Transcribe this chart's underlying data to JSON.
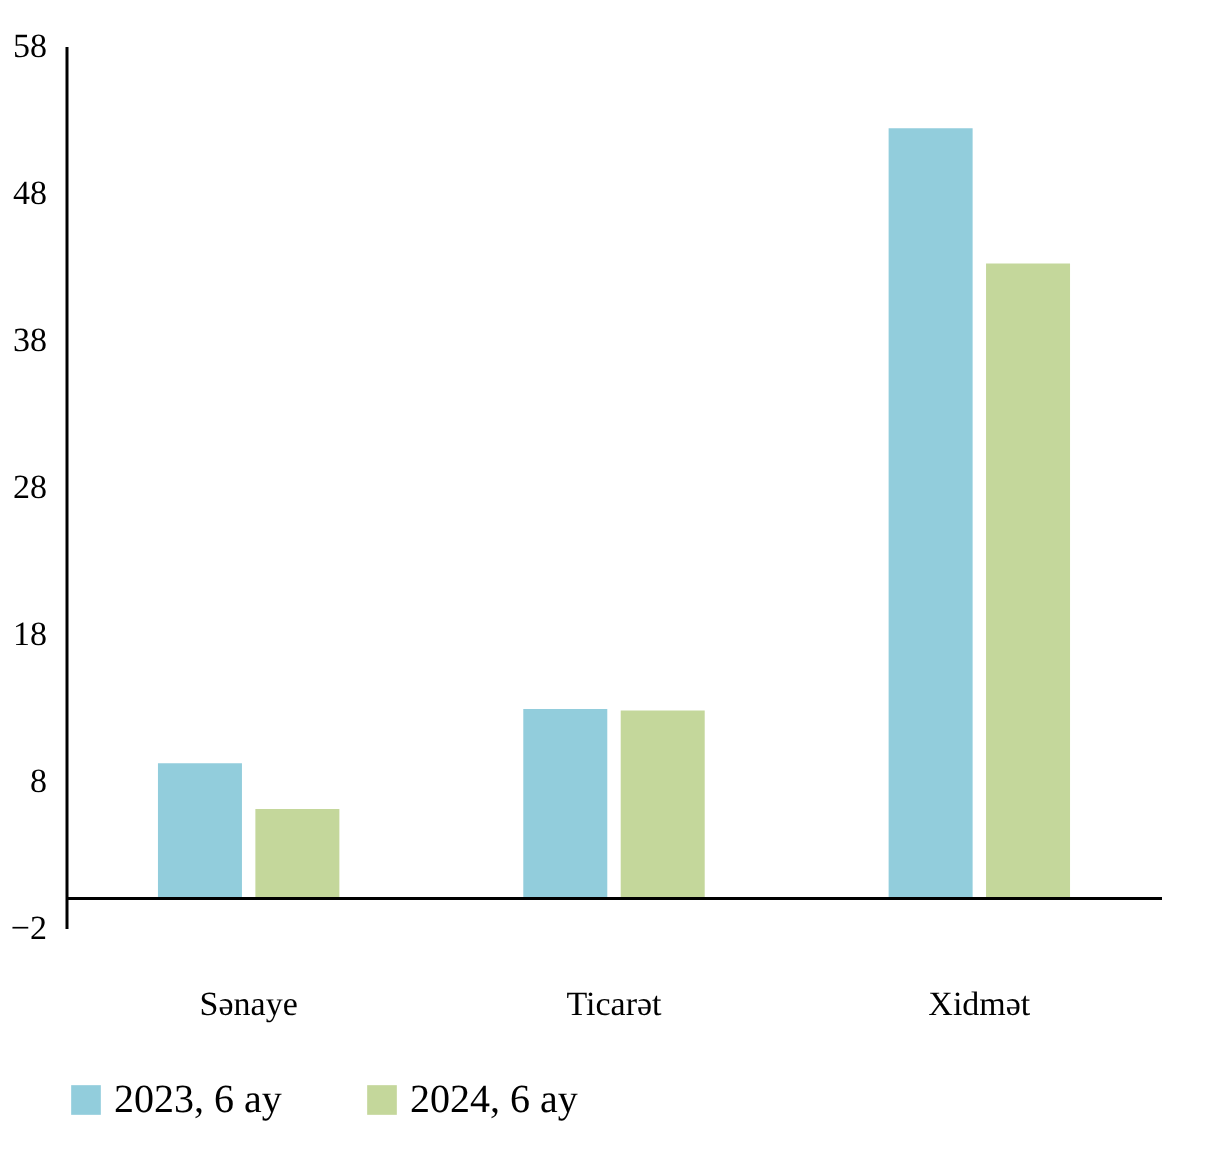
{
  "chart_data": {
    "type": "bar",
    "categories": [
      "Sənaye",
      "Ticarət",
      "Xidmət"
    ],
    "series": [
      {
        "name": "2023, 6 ay",
        "color": "#92cddc",
        "values": [
          9.2,
          12.9,
          52.4
        ]
      },
      {
        "name": "2024, 6 ay",
        "color": "#c4d79b",
        "values": [
          6.1,
          12.8,
          43.2
        ]
      }
    ],
    "ylim": [
      -2,
      58
    ],
    "yticks": [
      -2,
      8,
      18,
      28,
      38,
      48,
      58
    ],
    "grid": false,
    "legend": "bottom"
  }
}
